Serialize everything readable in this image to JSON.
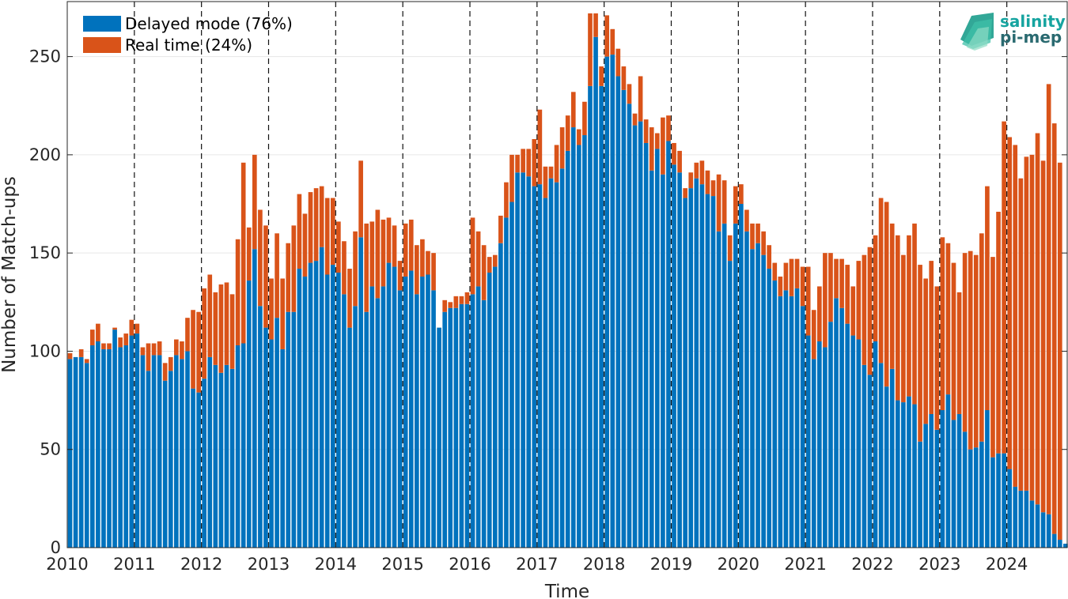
{
  "chart_data": {
    "type": "bar",
    "stacked": true,
    "xlabel": "Time",
    "ylabel": "Number of Match-ups",
    "ylim": [
      0,
      278
    ],
    "yticks": [
      0,
      50,
      100,
      150,
      200,
      250
    ],
    "xlim": [
      2010,
      2024.9
    ],
    "xticks": [
      2010,
      2011,
      2012,
      2013,
      2014,
      2015,
      2016,
      2017,
      2018,
      2019,
      2020,
      2021,
      2022,
      2023,
      2024
    ],
    "year_dividers": [
      2011,
      2012,
      2013,
      2014,
      2015,
      2016,
      2017,
      2018,
      2019,
      2020,
      2021,
      2022,
      2023,
      2024
    ],
    "grid": true,
    "legend_position": "top-left",
    "series": [
      {
        "name": "Delayed mode (76%)",
        "color": "#0072bd",
        "values": [
          96,
          97,
          97,
          94,
          103,
          105,
          101,
          101,
          111,
          102,
          103,
          108,
          109,
          98,
          90,
          98,
          98,
          85,
          90,
          98,
          96,
          100,
          81,
          79,
          86,
          97,
          93,
          89,
          93,
          91,
          103,
          104,
          136,
          152,
          123,
          112,
          106,
          117,
          101,
          120,
          120,
          142,
          138,
          145,
          146,
          153,
          139,
          144,
          140,
          129,
          112,
          123,
          158,
          120,
          133,
          127,
          133,
          145,
          143,
          131,
          138,
          141,
          129,
          138,
          139,
          131,
          112,
          120,
          122,
          122,
          124,
          124,
          129,
          133,
          126,
          140,
          143,
          155,
          168,
          176,
          191,
          191,
          189,
          184,
          185,
          178,
          188,
          186,
          193,
          202,
          214,
          205,
          210,
          235,
          260,
          235,
          250,
          251,
          240,
          233,
          226,
          215,
          217,
          206,
          192,
          203,
          190,
          207,
          195,
          191,
          178,
          183,
          188,
          185,
          180,
          179,
          161,
          165,
          146,
          165,
          175,
          161,
          152,
          155,
          149,
          142,
          136,
          128,
          131,
          128,
          132,
          123,
          108,
          96,
          105,
          102,
          115,
          127,
          122,
          114,
          108,
          106,
          93,
          88,
          105,
          94,
          82,
          91,
          75,
          74,
          77,
          73,
          54,
          63,
          68,
          60,
          70,
          78,
          65,
          68,
          59,
          50,
          51,
          54,
          70,
          46,
          48,
          48,
          40,
          31,
          29,
          29,
          24,
          22,
          18,
          17,
          7,
          4,
          2
        ]
      },
      {
        "name": "Real time (24%)",
        "color": "#d95319",
        "values": [
          3,
          0,
          4,
          2,
          8,
          9,
          3,
          3,
          1,
          5,
          6,
          8,
          5,
          4,
          14,
          6,
          7,
          9,
          7,
          8,
          9,
          17,
          40,
          41,
          46,
          42,
          37,
          45,
          42,
          38,
          54,
          92,
          27,
          48,
          49,
          52,
          31,
          43,
          36,
          35,
          44,
          38,
          32,
          36,
          37,
          31,
          39,
          34,
          26,
          27,
          30,
          38,
          39,
          45,
          33,
          45,
          34,
          23,
          21,
          15,
          27,
          26,
          25,
          19,
          12,
          19,
          0,
          6,
          3,
          6,
          4,
          6,
          39,
          28,
          28,
          8,
          6,
          14,
          18,
          24,
          9,
          12,
          14,
          24,
          38,
          16,
          6,
          19,
          21,
          18,
          18,
          8,
          17,
          37,
          12,
          10,
          21,
          13,
          14,
          12,
          10,
          6,
          23,
          12,
          22,
          8,
          29,
          13,
          11,
          11,
          5,
          8,
          8,
          12,
          12,
          8,
          29,
          22,
          13,
          19,
          10,
          11,
          13,
          10,
          12,
          12,
          9,
          10,
          14,
          19,
          15,
          20,
          35,
          25,
          28,
          48,
          35,
          20,
          25,
          30,
          25,
          40,
          56,
          65,
          54,
          84,
          94,
          74,
          84,
          75,
          82,
          92,
          90,
          74,
          78,
          73,
          88,
          77,
          80,
          62,
          91,
          101,
          98,
          106,
          114,
          102,
          123,
          169,
          169,
          174,
          159,
          170,
          176,
          189,
          179,
          219,
          209,
          192,
          0
        ]
      }
    ]
  },
  "logo": {
    "line1": "salinity",
    "line2": "pi-mep"
  }
}
